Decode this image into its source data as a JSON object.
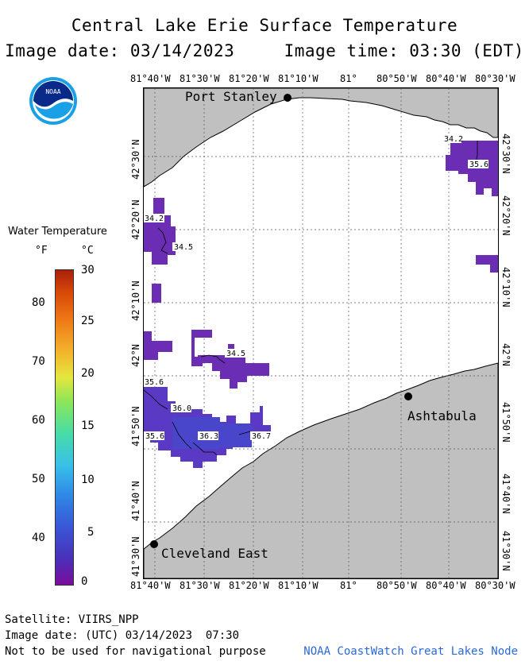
{
  "title": "Central Lake Erie Surface Temperature",
  "image_date_label": "Image date: 03/14/2023",
  "image_time_label": "Image time: 03:30 (EDT)",
  "logo_text": "NOAA",
  "lon_labels": [
    "81°40'W",
    "81°30'W",
    "81°20'W",
    "81°10'W",
    "81°",
    "80°50'W",
    "80°40'W",
    "80°30'W"
  ],
  "lat_labels": [
    "42°30'N",
    "42°20'N",
    "42°10'N",
    "42°N",
    "41°50'N",
    "41°40'N",
    "41°30'N"
  ],
  "places": {
    "port_stanley": "Port Stanley",
    "ashtabula": "Ashtabula",
    "cleveland_east": "Cleveland East"
  },
  "contour_labels": [
    "34.2",
    "35.6",
    "34.2",
    "34.5",
    "34.5",
    "35.6",
    "36.0",
    "35.6",
    "36.3",
    "36.7"
  ],
  "legend": {
    "title": "Water Temperature",
    "unit_f": "°F",
    "unit_c": "°C",
    "f_ticks": [
      "80",
      "70",
      "60",
      "50",
      "40"
    ],
    "c_ticks": [
      "30",
      "25",
      "20",
      "15",
      "10",
      "5",
      "0"
    ],
    "colors": {
      "cold": "#7a0d9a",
      "mid": "#46dca8",
      "warm": "#a8200a"
    }
  },
  "footer": {
    "satellite": "Satellite: VIIRS_NPP",
    "utc_date": "Image date: (UTC) 03/14/2023  07:30",
    "disclaimer": "Not to be used for navigational purpose",
    "credit": "NOAA CoastWatch Great Lakes Node"
  },
  "colors": {
    "land": "#c0c0c0",
    "water": "#ffffff",
    "sst_purple": "#6a2db4",
    "sst_blue": "#4a46cc"
  }
}
